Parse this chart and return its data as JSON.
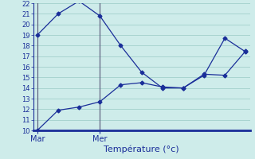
{
  "xlabel": "Température (°c)",
  "ylim": [
    10,
    22
  ],
  "yticks": [
    10,
    11,
    12,
    13,
    14,
    15,
    16,
    17,
    18,
    19,
    20,
    21,
    22
  ],
  "background_color": "#ceecea",
  "grid_color": "#a8d4d0",
  "line_color": "#1a2e99",
  "xtick_labels": [
    "Mar",
    "Mer"
  ],
  "xtick_positions": [
    0,
    3
  ],
  "xlim": [
    -0.2,
    10.2
  ],
  "line1_x": [
    0,
    1,
    2,
    3,
    4,
    5,
    6,
    7,
    8,
    9,
    10
  ],
  "line1_y": [
    19.0,
    21.0,
    22.2,
    20.8,
    18.0,
    15.5,
    14.0,
    14.0,
    15.2,
    18.7,
    17.4
  ],
  "line2_x": [
    0,
    1,
    2,
    3,
    4,
    5,
    6,
    7,
    8,
    9,
    10
  ],
  "line2_y": [
    10.0,
    11.9,
    12.2,
    12.7,
    14.3,
    14.5,
    14.1,
    14.0,
    15.3,
    15.2,
    17.5
  ],
  "vline_positions": [
    0,
    3
  ],
  "vline_color": "#555577",
  "tick_color": "#1a2e99",
  "label_fontsize": 7,
  "xlabel_fontsize": 8,
  "ytick_fontsize": 6
}
